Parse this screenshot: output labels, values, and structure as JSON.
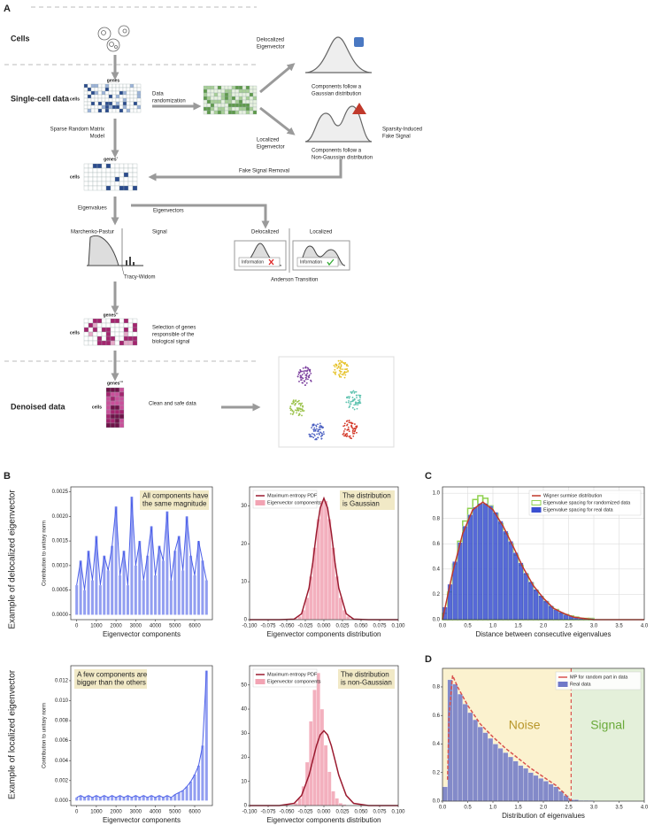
{
  "diagram": {
    "panel": "A",
    "cells": "Cells",
    "single_cell": "Single-cell data",
    "denoised": "Denoised data",
    "m1_cols": "genes",
    "m1_rows": "cells",
    "randomization": [
      "Data",
      "randomization"
    ],
    "delocalized_ev": [
      "Delocalized",
      "Eigenvector"
    ],
    "gaussian_note": [
      "Components follow a",
      "Gaussian distribution"
    ],
    "localized_ev": [
      "Localized",
      "Eigenvector"
    ],
    "nongaussian_note": [
      "Components follow a",
      "Non-Gaussian distribution"
    ],
    "fake_signal": [
      "Sparsity-Induced",
      "Fake Signal"
    ],
    "srm": [
      "Sparse Random Matrix",
      "Model"
    ],
    "m2_cols": "genes'",
    "m2_rows": "cells",
    "fake_removal": "Fake Signal Removal",
    "eigenvalues": "Eigenvalues",
    "eigenvectors": "Eigenvectors",
    "mp": "Marchenko-Pastur",
    "signal": "Signal",
    "tw": "Tracy-Widom",
    "deloc": "Delocalized",
    "loc": "Localized",
    "info1": "Information",
    "info2": "Information",
    "anderson": "Anderson Transition",
    "m3_cols": "genes''",
    "m3_rows": "cells",
    "selection": [
      "Selection of genes",
      "responsible of the",
      "biological signal"
    ],
    "m4_cols": "genes'''",
    "m4_rows": "cells",
    "clean": "Clean and safe data"
  },
  "figure": {
    "panel_b": "B",
    "panel_c": "C",
    "panel_d": "D",
    "row_labels": [
      "Example of delocalized eigenvector",
      "Example of localized eigenvector"
    ]
  },
  "chart_data": [
    {
      "type": "line",
      "color": "#4a5ee8",
      "annotation": [
        "All components have",
        "the same magnitude"
      ],
      "xlabel": "Eigenvector components",
      "ylabel": "Contribution to unitary norm",
      "x": [
        0,
        200,
        400,
        600,
        800,
        1000,
        1200,
        1400,
        1600,
        1800,
        2000,
        2200,
        2400,
        2600,
        2800,
        3000,
        3200,
        3400,
        3600,
        3800,
        4000,
        4200,
        4400,
        4600,
        4800,
        5000,
        5200,
        5400,
        5600,
        5800,
        6000,
        6200,
        6400,
        6600
      ],
      "values": [
        0.0006,
        0.0011,
        0.0005,
        0.0013,
        0.0007,
        0.0016,
        0.0006,
        0.0012,
        0.0009,
        0.0014,
        0.0022,
        0.0008,
        0.0013,
        0.0006,
        0.0024,
        0.001,
        0.0015,
        0.0007,
        0.0012,
        0.0018,
        0.0008,
        0.0014,
        0.0011,
        0.0021,
        0.0007,
        0.0013,
        0.0016,
        0.0009,
        0.002,
        0.0012,
        0.0008,
        0.0015,
        0.0011,
        0.0007
      ],
      "xlim": [
        -300,
        6900
      ],
      "ylim": [
        -0.0001,
        0.0026
      ],
      "xticks": [
        0,
        1000,
        2000,
        3000,
        4000,
        5000,
        6000
      ],
      "yticks": [
        {
          "value": 0,
          "label": "0.0000"
        },
        0.0005,
        {
          "value": 0.001,
          "label": "0.0010"
        },
        0.0015,
        {
          "value": 0.002,
          "label": "0.0020"
        },
        0.0025
      ]
    },
    {
      "type": "histogram",
      "legend": "upper left",
      "annotation": [
        "The distribution",
        "is Gaussian"
      ],
      "xlabel": "Eigenvector components distribution",
      "curves": [
        {
          "name": "Maximum entropy PDF",
          "color": "#9b1b30",
          "x": [
            -0.1,
            -0.06,
            -0.04,
            -0.03,
            -0.02,
            -0.015,
            -0.01,
            -0.005,
            0,
            0.005,
            0.01,
            0.015,
            0.02,
            0.03,
            0.04,
            0.06,
            0.1
          ],
          "values": [
            0,
            0,
            0.15,
            1.56,
            8.35,
            15.0,
            22.9,
            29.4,
            32,
            29.4,
            22.9,
            15.0,
            8.35,
            1.56,
            0.15,
            0,
            0
          ]
        }
      ],
      "histograms": [
        {
          "name": "Eigenvector components",
          "color": "#f2a3b3",
          "bins": [
            -0.04,
            -0.035,
            -0.03,
            -0.025,
            -0.02,
            -0.015,
            -0.01,
            -0.005,
            0,
            0.005,
            0.01,
            0.015,
            0.02,
            0.025,
            0.03,
            0.035,
            0.04
          ],
          "counts": [
            0.3,
            0.9,
            2.5,
            5.8,
            11.4,
            19.0,
            26.5,
            31.3,
            31.3,
            26.5,
            19.0,
            11.4,
            5.8,
            2.5,
            0.9,
            0.3
          ]
        }
      ],
      "xlim": [
        -0.1,
        0.1
      ],
      "ylim": [
        0,
        35
      ],
      "xticks": [
        {
          "value": -0.1,
          "label": "-0.100"
        },
        -0.075,
        {
          "value": -0.05,
          "label": "-0.050"
        },
        -0.025,
        {
          "value": 0,
          "label": "0.000"
        },
        0.025,
        {
          "value": 0.05,
          "label": "0.050"
        },
        0.075,
        {
          "value": 0.1,
          "label": "0.100"
        }
      ],
      "yticks": [
        0,
        10,
        20,
        30
      ]
    },
    {
      "type": "line",
      "color": "#4a5ee8",
      "annotation": [
        "A few components are",
        "bigger than the others"
      ],
      "xlabel": "Eigenvector components",
      "ylabel": "Contribution to unitary norm",
      "x": [
        0,
        200,
        400,
        600,
        800,
        1000,
        1200,
        1400,
        1600,
        1800,
        2000,
        2200,
        2400,
        2600,
        2800,
        3000,
        3200,
        3400,
        3600,
        3800,
        4000,
        4200,
        4400,
        4600,
        4800,
        5000,
        5200,
        5400,
        5600,
        5800,
        6000,
        6200,
        6400,
        6600
      ],
      "values": [
        0.0003,
        0.0005,
        0.0003,
        0.0005,
        0.0003,
        0.0005,
        0.0003,
        0.0005,
        0.0003,
        0.0005,
        0.0003,
        0.0005,
        0.0003,
        0.0005,
        0.0003,
        0.0005,
        0.0003,
        0.0005,
        0.0003,
        0.0005,
        0.0003,
        0.0005,
        0.0003,
        0.0005,
        0.0003,
        0.0006,
        0.0008,
        0.001,
        0.0014,
        0.0019,
        0.0026,
        0.0035,
        0.0055,
        0.013
      ],
      "xlim": [
        -300,
        6900
      ],
      "ylim": [
        -0.0005,
        0.0135
      ],
      "xticks": [
        0,
        1000,
        2000,
        3000,
        4000,
        5000,
        6000
      ],
      "yticks": [
        {
          "value": 0,
          "label": "0.000"
        },
        0.002,
        0.004,
        0.006,
        0.008,
        {
          "value": 0.01,
          "label": "0.010"
        },
        0.012
      ]
    },
    {
      "type": "histogram",
      "legend": "upper left",
      "annotation": [
        "The distribution",
        "is non-Gaussian"
      ],
      "xlabel": "Eigenvector components distribution",
      "curves": [
        {
          "name": "Maximum entropy PDF",
          "color": "#9b1b30",
          "x": [
            -0.1,
            -0.06,
            -0.04,
            -0.03,
            -0.02,
            -0.015,
            -0.01,
            -0.005,
            0,
            0.005,
            0.01,
            0.015,
            0.02,
            0.03,
            0.04,
            0.06,
            0.1
          ],
          "values": [
            0,
            0,
            0.9,
            4.2,
            12.6,
            18.8,
            24.8,
            29.3,
            31,
            29.3,
            24.8,
            18.8,
            12.6,
            4.2,
            0.9,
            0,
            0
          ]
        }
      ],
      "histograms": [
        {
          "name": "Eigenvector components",
          "color": "#f2a3b3",
          "bins": [
            -0.04,
            -0.035,
            -0.03,
            -0.025,
            -0.02,
            -0.015,
            -0.01,
            -0.005,
            0,
            0.005,
            0.01,
            0.015,
            0.02,
            0.025,
            0.03
          ],
          "counts": [
            1,
            3,
            8,
            18,
            35,
            48,
            55,
            40,
            25,
            14,
            6,
            3,
            1,
            0.5
          ]
        }
      ],
      "xlim": [
        -0.1,
        0.1
      ],
      "ylim": [
        0,
        58
      ],
      "xticks": [
        {
          "value": -0.1,
          "label": "-0.100"
        },
        -0.075,
        {
          "value": -0.05,
          "label": "-0.050"
        },
        -0.025,
        {
          "value": 0,
          "label": "0.000"
        },
        0.025,
        {
          "value": 0.05,
          "label": "0.050"
        },
        0.075,
        {
          "value": 0.1,
          "label": "0.100"
        }
      ],
      "yticks": [
        0,
        10,
        20,
        30,
        40,
        50
      ]
    },
    {
      "type": "histogram",
      "legend": "upper right",
      "grid": true,
      "xlabel": "Distance between consecutive eigenvalues",
      "curves": [
        {
          "name": "Wigner surmise distribution",
          "color": "#c0392b",
          "x": [
            0,
            0.2,
            0.4,
            0.6,
            0.8,
            1.0,
            1.2,
            1.4,
            1.6,
            1.8,
            2.0,
            2.2,
            2.4,
            2.6,
            2.8,
            3.0,
            4.0
          ],
          "values": [
            0,
            0.37,
            0.68,
            0.87,
            0.93,
            0.87,
            0.74,
            0.58,
            0.41,
            0.27,
            0.17,
            0.09,
            0.05,
            0.02,
            0.01,
            0,
            0
          ]
        }
      ],
      "histograms": [
        {
          "name": "Eigenvalue spacing for randomized data",
          "color": "#8fd14f",
          "outline": true,
          "bins": [
            0,
            0.1,
            0.2,
            0.3,
            0.4,
            0.5,
            0.6,
            0.7,
            0.8,
            0.9,
            1.0,
            1.1,
            1.2,
            1.3,
            1.4,
            1.5,
            1.6,
            1.7,
            1.8,
            1.9,
            2.0,
            2.1,
            2.2,
            2.3,
            2.4,
            2.5,
            2.6,
            2.7,
            2.8,
            2.9,
            3.0
          ],
          "counts": [
            0.05,
            0.22,
            0.44,
            0.62,
            0.78,
            0.88,
            0.95,
            0.98,
            0.96,
            0.9,
            0.84,
            0.76,
            0.68,
            0.6,
            0.51,
            0.43,
            0.36,
            0.29,
            0.23,
            0.18,
            0.14,
            0.1,
            0.08,
            0.05,
            0.04,
            0.03,
            0.02,
            0.01,
            0.01,
            0.01
          ]
        },
        {
          "name": "Eigenvalue spacing for real data",
          "color": "#3a4fd1",
          "bins": [
            0,
            0.1,
            0.2,
            0.3,
            0.4,
            0.5,
            0.6,
            0.7,
            0.8,
            0.9,
            1.0,
            1.1,
            1.2,
            1.3,
            1.4,
            1.5,
            1.6,
            1.7,
            1.8,
            1.9,
            2.0,
            2.1,
            2.2,
            2.3,
            2.4,
            2.5,
            2.6,
            2.7,
            2.8,
            2.9,
            3.0
          ],
          "counts": [
            0.1,
            0.28,
            0.46,
            0.61,
            0.74,
            0.83,
            0.89,
            0.92,
            0.92,
            0.9,
            0.85,
            0.78,
            0.7,
            0.62,
            0.53,
            0.45,
            0.37,
            0.3,
            0.24,
            0.19,
            0.15,
            0.11,
            0.08,
            0.06,
            0.04,
            0.03,
            0.02,
            0.01,
            0.01,
            0.01
          ]
        }
      ],
      "xlim": [
        0,
        4
      ],
      "ylim": [
        0,
        1.05
      ],
      "xticks": [
        {
          "value": 0,
          "label": "0.0"
        },
        0.5,
        {
          "value": 1,
          "label": "1.0"
        },
        1.5,
        {
          "value": 2,
          "label": "2.0"
        },
        2.5,
        {
          "value": 3,
          "label": "3.0"
        },
        3.5,
        {
          "value": 4,
          "label": "4.0"
        }
      ],
      "yticks": [
        {
          "value": 0,
          "label": "0.0"
        },
        0.2,
        0.4,
        0.6,
        0.8,
        {
          "value": 1,
          "label": "1.0"
        }
      ]
    },
    {
      "type": "histogram",
      "legend": "upper right",
      "xlabel": "Distribution of eigenvalues",
      "threshold": 2.55,
      "noise_label": "Noise",
      "signal_label": "Signal",
      "noise_color": "#fbf2cf",
      "signal_color": "#e4f0da",
      "curves": [
        {
          "name": "MP for random part in data",
          "color": "#d9534f",
          "dashed": true,
          "x": [
            0.1,
            0.13,
            0.2,
            0.3,
            0.5,
            0.75,
            1.0,
            1.25,
            1.5,
            1.75,
            2.0,
            2.25,
            2.4,
            2.5,
            2.55
          ],
          "values": [
            0.15,
            0.6,
            0.88,
            0.8,
            0.67,
            0.54,
            0.45,
            0.37,
            0.3,
            0.23,
            0.17,
            0.11,
            0.06,
            0.02,
            0
          ]
        }
      ],
      "histograms": [
        {
          "name": "Real data",
          "color": "#6f78c8",
          "bins": [
            0,
            0.1,
            0.2,
            0.3,
            0.4,
            0.5,
            0.6,
            0.7,
            0.8,
            0.9,
            1.0,
            1.1,
            1.2,
            1.3,
            1.4,
            1.5,
            1.6,
            1.7,
            1.8,
            1.9,
            2.0,
            2.1,
            2.2,
            2.3,
            2.4,
            2.5,
            2.6,
            2.7,
            2.8,
            2.9,
            3.0
          ],
          "counts": [
            0.1,
            0.85,
            0.82,
            0.75,
            0.68,
            0.62,
            0.57,
            0.52,
            0.48,
            0.44,
            0.4,
            0.37,
            0.34,
            0.31,
            0.28,
            0.25,
            0.23,
            0.2,
            0.18,
            0.16,
            0.14,
            0.12,
            0.1,
            0.07,
            0.04,
            0.01,
            0.01,
            0.005,
            0.005,
            0.005
          ]
        }
      ],
      "xlim": [
        0,
        4
      ],
      "ylim": [
        0,
        0.93
      ],
      "xticks": [
        {
          "value": 0,
          "label": "0.0"
        },
        0.5,
        {
          "value": 1,
          "label": "1.0"
        },
        1.5,
        {
          "value": 2,
          "label": "2.0"
        },
        2.5,
        {
          "value": 3,
          "label": "3.0"
        },
        3.5,
        {
          "value": 4,
          "label": "4.0"
        }
      ],
      "yticks": [
        {
          "value": 0,
          "label": "0.0"
        },
        0.2,
        0.4,
        0.6,
        0.8
      ]
    }
  ]
}
